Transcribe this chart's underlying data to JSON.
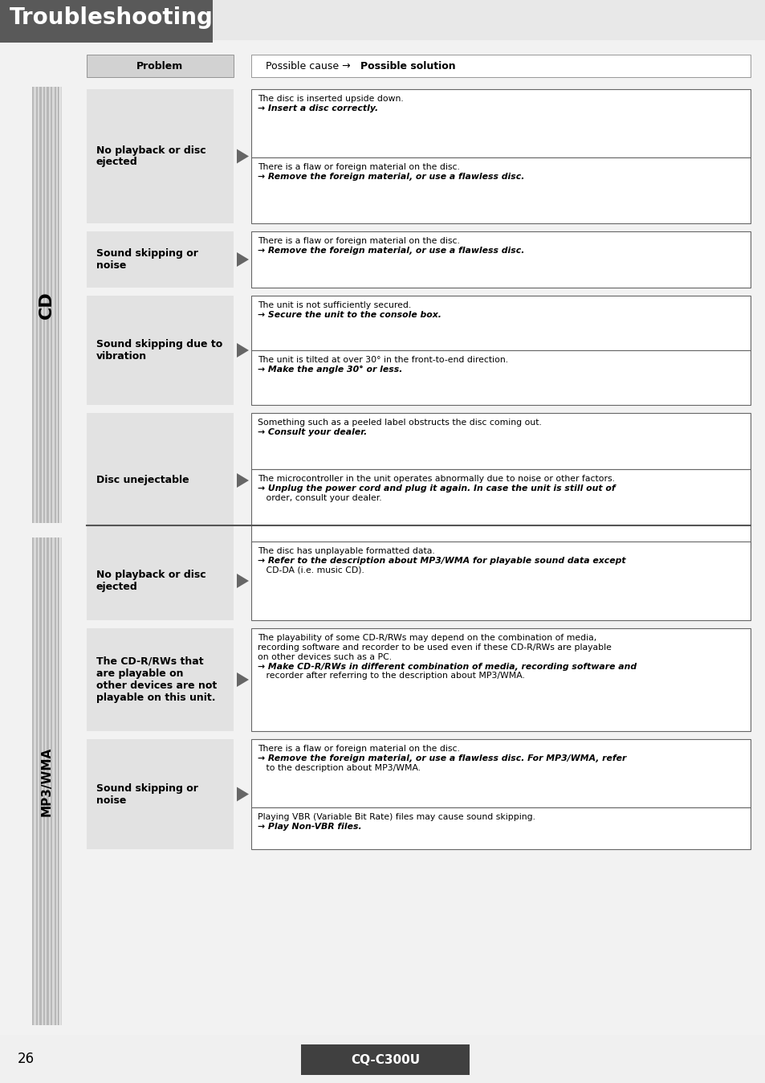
{
  "title": "Troubleshooting",
  "title_bg": "#595959",
  "title_color": "#ffffff",
  "page_bg": "#ffffff",
  "footer_bg": "#404040",
  "footer_text": "CQ-C300U",
  "page_num": "26",
  "cd_label": "CD",
  "mp3_label": "MP3/WMA",
  "col_header_problem": "Problem",
  "cd_rows": [
    {
      "problem": "No playback or disc\nejected",
      "causes": [
        "The disc is inserted upside down.\n→ Insert a disc correctly.",
        "There is a flaw or foreign material on the disc.\n→ Remove the foreign material, or use a flawless disc."
      ]
    },
    {
      "problem": "Sound skipping or\nnoise",
      "causes": [
        "There is a flaw or foreign material on the disc.\n→ Remove the foreign material, or use a flawless disc."
      ]
    },
    {
      "problem": "Sound skipping due to\nvibration",
      "causes": [
        "The unit is not sufficiently secured.\n→ Secure the unit to the console box.",
        "The unit is tilted at over 30° in the front-to-end direction.\n→ Make the angle 30° or less."
      ]
    },
    {
      "problem": "Disc unejectable",
      "causes": [
        "Something such as a peeled label obstructs the disc coming out.\n→ Consult your dealer.",
        "The microcontroller in the unit operates abnormally due to noise or other factors.\n→ Unplug the power cord and plug it again. In case the unit is still out of\n   order, consult your dealer."
      ]
    }
  ],
  "mp3_rows": [
    {
      "problem": "No playback or disc\nejected",
      "causes": [
        "The disc has unplayable formatted data.\n→ Refer to the description about MP3/WMA for playable sound data except\n   CD-DA (i.e. music CD)."
      ]
    },
    {
      "problem": "The CD-R/RWs that\nare playable on\nother devices are not\nplayable on this unit.",
      "causes": [
        "The playability of some CD-R/RWs may depend on the combination of media,\nrecording software and recorder to be used even if these CD-R/RWs are playable\non other devices such as a PC.\n→ Make CD-R/RWs in different combination of media, recording software and\n   recorder after referring to the description about MP3/WMA."
      ]
    },
    {
      "problem": "Sound skipping or\nnoise",
      "causes": [
        "There is a flaw or foreign material on the disc.\n→ Remove the foreign material, or use a flawless disc. For MP3/WMA, refer\n   to the description about MP3/WMA.",
        "Playing VBR (Variable Bit Rate) files may cause sound skipping.\n→ Play Non-VBR files."
      ]
    }
  ]
}
